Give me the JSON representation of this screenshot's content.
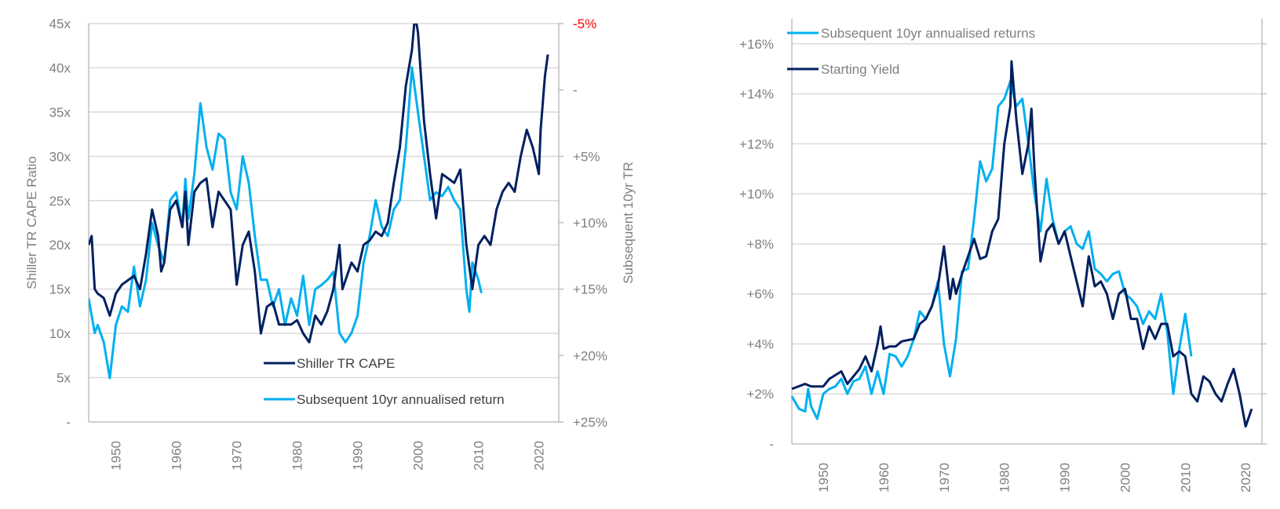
{
  "chart_data": [
    {
      "type": "line",
      "title": "",
      "xlabel": "",
      "ylabel": "Shiller TR CAPE Ratio",
      "y2label": "Subsequent 10yr TR",
      "xlim": [
        1945.5,
        2023.3
      ],
      "ylim": [
        0,
        45
      ],
      "y2lim": [
        -5,
        25
      ],
      "y2_inverted": true,
      "grid": true,
      "legend_position": "bottom-right",
      "x_ticks": [
        "1950",
        "1960",
        "1970",
        "1980",
        "1990",
        "2000",
        "2010",
        "2020"
      ],
      "y_ticks": [
        "-",
        "5x",
        "10x",
        "15x",
        "20x",
        "25x",
        "30x",
        "35x",
        "40x",
        "45x"
      ],
      "y2_ticks": [
        "-5%",
        "-",
        "+5%",
        "+10%",
        "+15%",
        "+20%",
        "+25%"
      ],
      "y2_tick_colors": [
        "#ff0000",
        "#7f7f7f",
        "#7f7f7f",
        "#7f7f7f",
        "#7f7f7f",
        "#7f7f7f",
        "#7f7f7f"
      ],
      "series": [
        {
          "name": "Shiller TR CAPE",
          "axis": "left",
          "color": "#002060",
          "x": [
            1945.5,
            1946,
            1946.5,
            1947,
            1948,
            1949,
            1950,
            1951,
            1952,
            1953,
            1954,
            1955,
            1956,
            1957,
            1957.5,
            1958,
            1959,
            1960,
            1961,
            1961.5,
            1962,
            1963,
            1964,
            1965,
            1966,
            1967,
            1968,
            1969,
            1970,
            1971,
            1972,
            1973,
            1974,
            1975,
            1976,
            1977,
            1978,
            1979,
            1980,
            1981,
            1982,
            1983,
            1984,
            1985,
            1986,
            1987,
            1987.5,
            1988,
            1989,
            1990,
            1991,
            1992,
            1993,
            1994,
            1995,
            1996,
            1997,
            1998,
            1999,
            1999.5,
            2000,
            2001,
            2002,
            2003,
            2004,
            2005,
            2006,
            2007,
            2008,
            2009,
            2010,
            2011,
            2012,
            2013,
            2014,
            2015,
            2016,
            2017,
            2018,
            2019,
            2020,
            2020.3,
            2021,
            2021.5
          ],
          "values": [
            20,
            21,
            15,
            14.5,
            14,
            12,
            14.5,
            15.5,
            16,
            16.5,
            15,
            19,
            24,
            21,
            17,
            18,
            24,
            25,
            22,
            26,
            20,
            26,
            27,
            27.5,
            22,
            26,
            25,
            24,
            15.5,
            20,
            21.5,
            17,
            10,
            13,
            13.5,
            11,
            11,
            11,
            11.5,
            10,
            9,
            12,
            11,
            12.5,
            15,
            20,
            15,
            16,
            18,
            17,
            20,
            20.5,
            21.5,
            21,
            22.5,
            27,
            31,
            38,
            42,
            46,
            44,
            34,
            28,
            23,
            28,
            27.5,
            27,
            28.5,
            20,
            15,
            20,
            21,
            20,
            24,
            26,
            27,
            26,
            30,
            33,
            31,
            28,
            33,
            39,
            41.5
          ]
        },
        {
          "name": "Subsequent 10yr annualised return",
          "axis": "right",
          "color": "#00b0f0",
          "x": [
            1945.5,
            1946,
            1946.5,
            1947,
            1948,
            1949,
            1950,
            1951,
            1952,
            1953,
            1954,
            1955,
            1956,
            1957,
            1958,
            1959,
            1960,
            1961,
            1961.5,
            1962,
            1963,
            1964,
            1965,
            1966,
            1967,
            1968,
            1969,
            1970,
            1971,
            1972,
            1973,
            1974,
            1975,
            1976,
            1977,
            1978,
            1979,
            1980,
            1981,
            1982,
            1983,
            1984,
            1985,
            1986,
            1987,
            1988,
            1989,
            1990,
            1991,
            1992,
            1993,
            1994,
            1995,
            1996,
            1997,
            1998,
            1999,
            2000,
            2001,
            2002,
            2003,
            2004,
            2005,
            2006,
            2007,
            2008,
            2008.5,
            2009,
            2010,
            2010.5
          ],
          "values": [
            15.7,
            17,
            18.3,
            17.7,
            19,
            21.7,
            17.7,
            16.3,
            16.7,
            13.3,
            16.3,
            14.3,
            10,
            11.7,
            13,
            8.3,
            7.7,
            10.3,
            6.7,
            9.7,
            6.3,
            1,
            4.3,
            6,
            3.3,
            3.7,
            7.7,
            9,
            5,
            7,
            11,
            14.3,
            14.3,
            16.3,
            15,
            17.7,
            15.7,
            17,
            14,
            17.7,
            15,
            14.7,
            14.3,
            13.7,
            18.3,
            19,
            18.3,
            17,
            13,
            11,
            8.3,
            10.3,
            11,
            9,
            8.3,
            4.3,
            -1.7,
            1.7,
            5,
            8.3,
            7.7,
            8,
            7.3,
            8.3,
            9,
            15,
            16.7,
            13,
            14.3,
            15.3
          ]
        }
      ]
    },
    {
      "type": "line",
      "title": "",
      "xlabel": "",
      "ylabel": "",
      "xlim": [
        1944.8,
        2022.7
      ],
      "ylim": [
        0,
        17
      ],
      "grid": true,
      "legend_position": "top-left",
      "x_ticks": [
        "1950",
        "1960",
        "1970",
        "1980",
        "1990",
        "2000",
        "2010",
        "2020"
      ],
      "y_ticks": [
        "-",
        "+2%",
        "+4%",
        "+6%",
        "+8%",
        "+10%",
        "+12%",
        "+14%",
        "+16%"
      ],
      "series": [
        {
          "name": "Subsequent 10yr annualised returns",
          "color": "#00b0f0",
          "x": [
            1944.8,
            1946,
            1947,
            1947.5,
            1948,
            1949,
            1950,
            1951,
            1952,
            1953,
            1954,
            1955,
            1956,
            1957,
            1958,
            1959,
            1960,
            1961,
            1962,
            1963,
            1964,
            1965,
            1966,
            1967,
            1968,
            1969,
            1970,
            1971,
            1972,
            1973,
            1974,
            1975,
            1976,
            1977,
            1978,
            1979,
            1980,
            1981,
            1982,
            1983,
            1984,
            1985,
            1986,
            1987,
            1988,
            1989,
            1990,
            1991,
            1992,
            1993,
            1994,
            1995,
            1996,
            1997,
            1998,
            1999,
            2000,
            2001,
            2002,
            2003,
            2004,
            2005,
            2006,
            2007,
            2008,
            2009,
            2010,
            2011
          ],
          "values": [
            1.9,
            1.4,
            1.3,
            2.2,
            1.5,
            1.0,
            2.0,
            2.2,
            2.3,
            2.6,
            2.0,
            2.5,
            2.6,
            3.1,
            2.0,
            2.9,
            2.0,
            3.6,
            3.5,
            3.1,
            3.5,
            4.2,
            5.3,
            5.0,
            5.5,
            6.5,
            4.0,
            2.7,
            4.2,
            6.9,
            7.0,
            9.0,
            11.3,
            10.5,
            11.0,
            13.5,
            13.8,
            14.5,
            13.5,
            13.8,
            12.0,
            10.0,
            8.5,
            10.6,
            9.0,
            8.0,
            8.5,
            8.7,
            8.0,
            7.8,
            8.5,
            7.0,
            6.8,
            6.5,
            6.8,
            6.9,
            6.0,
            5.8,
            5.5,
            4.8,
            5.3,
            5.0,
            6.0,
            4.5,
            2.0,
            3.8,
            5.2,
            3.5
          ]
        },
        {
          "name": "Starting Yield",
          "color": "#002060",
          "x": [
            1944.8,
            1947,
            1948,
            1950,
            1951,
            1953,
            1954,
            1956,
            1957,
            1958,
            1959,
            1959.5,
            1960,
            1961,
            1962,
            1963,
            1965,
            1966,
            1967,
            1968,
            1969,
            1970,
            1971,
            1971.5,
            1972,
            1973,
            1974,
            1975,
            1976,
            1977,
            1978,
            1979,
            1979.5,
            1980,
            1981,
            1981.2,
            1982,
            1983,
            1984,
            1984.5,
            1985,
            1986,
            1987,
            1988,
            1989,
            1990,
            1991,
            1992,
            1993,
            1994,
            1995,
            1996,
            1997,
            1998,
            1999,
            2000,
            2001,
            2002,
            2003,
            2004,
            2005,
            2006,
            2007,
            2008,
            2009,
            2010,
            2011,
            2012,
            2013,
            2014,
            2015,
            2016,
            2017,
            2018,
            2019,
            2020,
            2021
          ],
          "values": [
            2.2,
            2.4,
            2.3,
            2.3,
            2.6,
            2.9,
            2.4,
            3.0,
            3.5,
            2.9,
            4.0,
            4.7,
            3.8,
            3.9,
            3.9,
            4.1,
            4.2,
            4.8,
            5.0,
            5.5,
            6.3,
            7.9,
            5.8,
            6.6,
            6.0,
            6.8,
            7.5,
            8.2,
            7.4,
            7.5,
            8.5,
            9.0,
            10.5,
            12.0,
            13.5,
            15.3,
            13.0,
            10.8,
            12.0,
            13.4,
            11.0,
            7.3,
            8.5,
            8.8,
            8.0,
            8.5,
            7.5,
            6.5,
            5.5,
            7.5,
            6.3,
            6.5,
            6.0,
            5.0,
            6.0,
            6.2,
            5.0,
            5.0,
            3.8,
            4.7,
            4.2,
            4.8,
            4.8,
            3.5,
            3.7,
            3.5,
            2.0,
            1.7,
            2.7,
            2.5,
            2.0,
            1.7,
            2.4,
            3.0,
            2.0,
            0.7,
            1.4
          ]
        }
      ]
    }
  ]
}
